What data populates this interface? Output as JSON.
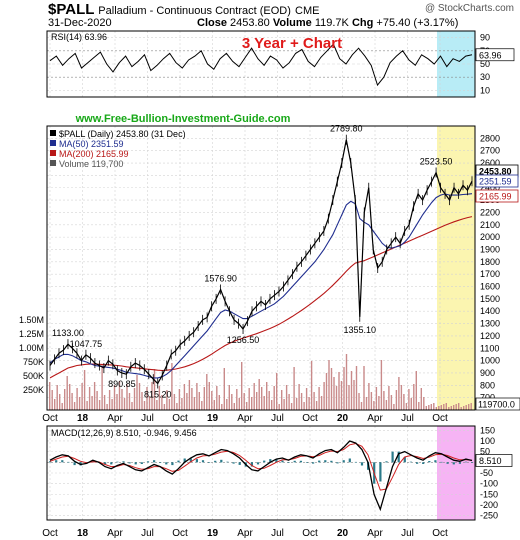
{
  "header": {
    "symbol": "$PALL",
    "description": "Palladium - Continuous Contract (EOD)",
    "exchange": "CME",
    "copyright": "@ StockCharts.com",
    "date": "31-Dec-2020",
    "close_label": "Close",
    "close": "2453.80",
    "volume_label": "Volume",
    "volume": "119.7K",
    "chg_label": "Chg",
    "chg": "+75.40 (+3.17%)"
  },
  "overlays": {
    "chart_title": "3 Year + Chart",
    "website": "www.Free-Bullion-Investment-Guide.com"
  },
  "colors": {
    "price": "#000000",
    "ma50": "#1f2d8f",
    "ma200": "#b81818",
    "volume": "#c98a8a",
    "rsi_highlight": "#b8ecf6",
    "price_highlight": "#fbf5b0",
    "macd_highlight": "#f6b4f4",
    "title_red": "#e01b1b",
    "website_green": "#18a818",
    "macd_line": "#000000",
    "signal_line": "#d02020",
    "histogram": "#2a7a8a"
  },
  "chart_data": [
    {
      "type": "line",
      "panel": "rsi",
      "legend": "RSI(14) 63.96",
      "ylim": [
        0,
        100
      ],
      "y_ticks": [
        10,
        30,
        50,
        70,
        90
      ],
      "current_label": "63.96",
      "x_ticks": [
        "Oct",
        "18",
        "Apr",
        "Jul",
        "Oct",
        "19",
        "Apr",
        "Jul",
        "Oct",
        "20",
        "Apr",
        "Jul",
        "Oct"
      ],
      "series": [
        {
          "values": [
            55,
            62,
            48,
            58,
            66,
            44,
            52,
            60,
            68,
            50,
            38,
            52,
            62,
            46,
            54,
            64,
            40,
            48,
            58,
            66,
            52,
            44,
            56,
            62,
            70,
            50,
            42,
            58,
            66,
            54,
            46,
            60,
            74,
            58,
            48,
            62,
            56,
            44,
            52,
            66,
            72,
            54,
            46,
            60,
            70,
            80,
            58,
            50,
            64,
            74,
            62,
            48,
            18,
            30,
            52,
            62,
            70,
            56,
            48,
            64,
            58,
            50,
            62,
            46,
            58,
            54,
            62,
            64
          ]
        }
      ]
    },
    {
      "type": "line",
      "panel": "price",
      "legend": [
        {
          "label": "$PALL (Daily) 2453.80 (31 Dec)"
        },
        {
          "label": "MA(50) 2351.59"
        },
        {
          "label": "MA(200) 2165.99"
        },
        {
          "label": "Volume 119,700"
        }
      ],
      "ylim": [
        600,
        2900
      ],
      "y_ticks": [
        700,
        800,
        900,
        1000,
        1100,
        1200,
        1300,
        1400,
        1500,
        1600,
        1700,
        1800,
        1900,
        2000,
        2100,
        2200,
        2300,
        2400,
        2500,
        2600,
        2700,
        2800
      ],
      "volume_axis_labels": [
        "1.50M",
        "1.25M",
        "1.00M",
        "750K",
        "500K",
        "250K"
      ],
      "price_tags": [
        "2453.80",
        "2351.59",
        "2165.99"
      ],
      "volume_tag": "119700.0",
      "annotations": [
        "1133.00",
        "1047.75",
        "890.85",
        "815.20",
        "1576.90",
        "1256.50",
        "2789.80",
        "1355.10",
        "2523.50"
      ],
      "x_ticks": [
        "Oct",
        "18",
        "Apr",
        "Jul",
        "Oct",
        "19",
        "Apr",
        "Jul",
        "Oct",
        "20",
        "Apr",
        "Jul",
        "Oct"
      ],
      "series": [
        {
          "name": "$PALL",
          "values": [
            960,
            1010,
            1060,
            1085,
            1133,
            1100,
            1060,
            1000,
            1047,
            1020,
            980,
            960,
            940,
            1000,
            970,
            920,
            900,
            890,
            950,
            980,
            960,
            930,
            890,
            850,
            815,
            880,
            960,
            1050,
            1080,
            1130,
            1160,
            1200,
            1230,
            1280,
            1330,
            1350,
            1440,
            1500,
            1576,
            1480,
            1400,
            1330,
            1300,
            1256,
            1320,
            1400,
            1440,
            1480,
            1450,
            1500,
            1530,
            1560,
            1600,
            1650,
            1700,
            1760,
            1800,
            1850,
            1900,
            1950,
            2000,
            2050,
            2150,
            2300,
            2450,
            2600,
            2789,
            2600,
            2300,
            1355,
            2200,
            2400,
            1900,
            1750,
            1800,
            1900,
            1950,
            2000,
            1950,
            2050,
            2100,
            2250,
            2350,
            2300,
            2380,
            2450,
            2523,
            2400,
            2350,
            2300,
            2400,
            2350,
            2420,
            2380,
            2453
          ]
        },
        {
          "name": "MA(50)",
          "values": [
            980,
            1010,
            1030,
            1050,
            1050,
            1040,
            1020,
            1000,
            990,
            975,
            960,
            955,
            950,
            945,
            940,
            930,
            920,
            905,
            900,
            895,
            890,
            880,
            870,
            860,
            860,
            870,
            890,
            920,
            960,
            1000,
            1040,
            1080,
            1120,
            1160,
            1200,
            1240,
            1290,
            1340,
            1390,
            1410,
            1400,
            1380,
            1360,
            1340,
            1340,
            1360,
            1380,
            1400,
            1420,
            1440,
            1460,
            1490,
            1520,
            1560,
            1600,
            1640,
            1680,
            1720,
            1760,
            1800,
            1850,
            1900,
            1960,
            2020,
            2100,
            2180,
            2260,
            2290,
            2270,
            2150,
            2120,
            2100,
            2050,
            2000,
            1950,
            1920,
            1910,
            1920,
            1930,
            1960,
            2000,
            2060,
            2120,
            2180,
            2230,
            2280,
            2320,
            2340,
            2350,
            2340,
            2340,
            2340,
            2345,
            2348,
            2351.59
          ]
        },
        {
          "name": "MA(200)",
          "values": [
            860,
            880,
            900,
            920,
            940,
            950,
            960,
            965,
            970,
            972,
            972,
            970,
            968,
            966,
            964,
            960,
            956,
            950,
            946,
            942,
            938,
            934,
            930,
            926,
            922,
            920,
            922,
            926,
            932,
            940,
            950,
            962,
            976,
            992,
            1010,
            1030,
            1052,
            1076,
            1100,
            1122,
            1140,
            1156,
            1170,
            1182,
            1194,
            1206,
            1218,
            1232,
            1246,
            1260,
            1276,
            1294,
            1314,
            1336,
            1358,
            1382,
            1406,
            1432,
            1458,
            1486,
            1514,
            1544,
            1576,
            1610,
            1646,
            1684,
            1724,
            1760,
            1790,
            1800,
            1810,
            1825,
            1840,
            1856,
            1872,
            1888,
            1904,
            1920,
            1936,
            1952,
            1968,
            1984,
            2000,
            2016,
            2032,
            2048,
            2064,
            2080,
            2096,
            2110,
            2124,
            2136,
            2148,
            2158,
            2165.99
          ]
        }
      ]
    },
    {
      "type": "line",
      "panel": "macd",
      "legend": "MACD(12,26,9) 8.510, -0.946, 9.456",
      "ylim": [
        -270,
        170
      ],
      "y_ticks": [
        150,
        100,
        50,
        0,
        -50,
        -100,
        -150,
        -200,
        -250
      ],
      "current_label": "8.510",
      "x_ticks": [
        "Oct",
        "18",
        "Apr",
        "Jul",
        "Oct",
        "19",
        "Apr",
        "Jul",
        "Oct",
        "20",
        "Apr",
        "Jul",
        "Oct"
      ],
      "series": [
        {
          "name": "MACD",
          "values": [
            10,
            25,
            35,
            30,
            5,
            -10,
            -5,
            10,
            0,
            -20,
            -30,
            -15,
            -5,
            -20,
            -35,
            -40,
            -25,
            -10,
            -20,
            -40,
            -55,
            -30,
            0,
            20,
            35,
            40,
            30,
            45,
            60,
            55,
            40,
            20,
            -10,
            -35,
            -40,
            -20,
            0,
            15,
            20,
            10,
            25,
            35,
            30,
            20,
            40,
            55,
            60,
            45,
            70,
            100,
            90,
            60,
            0,
            -150,
            -220,
            -120,
            -20,
            40,
            50,
            35,
            20,
            10,
            30,
            45,
            40,
            25,
            10,
            5,
            15,
            8.51
          ]
        },
        {
          "name": "Signal",
          "values": [
            5,
            15,
            25,
            28,
            18,
            5,
            -2,
            3,
            2,
            -10,
            -20,
            -18,
            -10,
            -15,
            -25,
            -32,
            -30,
            -20,
            -20,
            -30,
            -42,
            -38,
            -18,
            2,
            20,
            30,
            32,
            38,
            48,
            52,
            46,
            32,
            10,
            -15,
            -30,
            -28,
            -15,
            0,
            12,
            12,
            18,
            28,
            30,
            26,
            32,
            45,
            53,
            50,
            60,
            82,
            88,
            75,
            35,
            -50,
            -130,
            -125,
            -70,
            -10,
            25,
            32,
            27,
            18,
            24,
            35,
            38,
            32,
            20,
            12,
            12,
            9.456
          ]
        }
      ]
    }
  ]
}
